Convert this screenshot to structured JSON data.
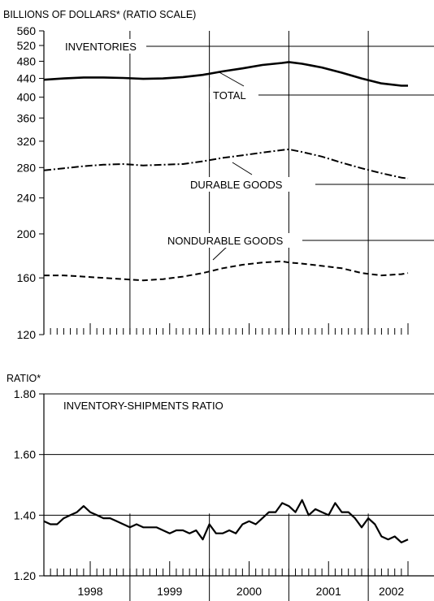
{
  "chart_data": [
    {
      "type": "line",
      "title": "",
      "ylabel": "BILLIONS OF DOLLARS* (RATIO SCALE)",
      "yscale": "log",
      "ylim": [
        120,
        560
      ],
      "yticks": [
        120,
        160,
        200,
        240,
        280,
        320,
        360,
        400,
        440,
        480,
        520,
        560
      ],
      "grid": "vertical lines at year boundaries",
      "x_range": [
        "1997-12",
        "2002-07"
      ],
      "panel_label": "INVENTORIES",
      "series": [
        {
          "name": "TOTAL",
          "style": "solid",
          "x": [
            "1997-12",
            "1998-03",
            "1998-06",
            "1998-09",
            "1998-12",
            "1999-03",
            "1999-06",
            "1999-09",
            "1999-12",
            "2000-03",
            "2000-06",
            "2000-09",
            "2000-12",
            "2001-01",
            "2001-03",
            "2001-06",
            "2001-09",
            "2001-12",
            "2002-03",
            "2002-06",
            "2002-07"
          ],
          "y": [
            437,
            440,
            442,
            442,
            441,
            439,
            440,
            443,
            448,
            456,
            463,
            471,
            476,
            478,
            474,
            465,
            453,
            440,
            429,
            424,
            424
          ]
        },
        {
          "name": "DURABLE GOODS",
          "style": "dash-dot",
          "x": [
            "1997-12",
            "1998-03",
            "1998-06",
            "1998-09",
            "1998-12",
            "1999-03",
            "1999-06",
            "1999-09",
            "1999-12",
            "2000-03",
            "2000-06",
            "2000-09",
            "2000-12",
            "2001-01",
            "2001-03",
            "2001-06",
            "2001-09",
            "2001-12",
            "2002-03",
            "2002-06",
            "2002-07"
          ],
          "y": [
            276,
            279,
            282,
            284,
            285,
            283,
            284,
            285,
            289,
            294,
            298,
            302,
            306,
            307,
            303,
            296,
            287,
            279,
            272,
            266,
            265
          ]
        },
        {
          "name": "NONDURABLE GOODS",
          "style": "dashed",
          "x": [
            "1997-12",
            "1998-03",
            "1998-06",
            "1998-09",
            "1998-12",
            "1999-03",
            "1999-06",
            "1999-09",
            "1999-12",
            "2000-03",
            "2000-06",
            "2000-09",
            "2000-12",
            "2001-01",
            "2001-03",
            "2001-06",
            "2001-09",
            "2001-12",
            "2002-03",
            "2002-06",
            "2002-07"
          ],
          "y": [
            162,
            162,
            161,
            160,
            159,
            158,
            159,
            161,
            164,
            168,
            171,
            173,
            174,
            173,
            172,
            170,
            168,
            164,
            162,
            163,
            164
          ]
        }
      ]
    },
    {
      "type": "line",
      "title": "",
      "ylabel": "RATIO*",
      "ylim": [
        1.2,
        1.8
      ],
      "yticks": [
        1.2,
        1.4,
        1.6,
        1.8
      ],
      "grid": "horizontal and vertical",
      "x_range": [
        "1997-12",
        "2002-07"
      ],
      "categories": [
        "1998",
        "1999",
        "2000",
        "2001",
        "2002"
      ],
      "panel_label": "INVENTORY-SHIPMENTS RATIO",
      "series": [
        {
          "name": "INVENTORY-SHIPMENTS RATIO",
          "style": "solid",
          "x": [
            "1997-12",
            "1998-01",
            "1998-02",
            "1998-03",
            "1998-04",
            "1998-05",
            "1998-06",
            "1998-07",
            "1998-08",
            "1998-09",
            "1998-10",
            "1998-11",
            "1998-12",
            "1999-01",
            "1999-02",
            "1999-03",
            "1999-04",
            "1999-05",
            "1999-06",
            "1999-07",
            "1999-08",
            "1999-09",
            "1999-10",
            "1999-11",
            "1999-12",
            "2000-01",
            "2000-02",
            "2000-03",
            "2000-04",
            "2000-05",
            "2000-06",
            "2000-07",
            "2000-08",
            "2000-09",
            "2000-10",
            "2000-11",
            "2000-12",
            "2001-01",
            "2001-02",
            "2001-03",
            "2001-04",
            "2001-05",
            "2001-06",
            "2001-07",
            "2001-08",
            "2001-09",
            "2001-10",
            "2001-11",
            "2001-12",
            "2002-01",
            "2002-02",
            "2002-03",
            "2002-04",
            "2002-05",
            "2002-06",
            "2002-07"
          ],
          "y": [
            1.38,
            1.37,
            1.37,
            1.39,
            1.4,
            1.41,
            1.43,
            1.41,
            1.4,
            1.39,
            1.39,
            1.38,
            1.37,
            1.36,
            1.37,
            1.36,
            1.36,
            1.36,
            1.35,
            1.34,
            1.35,
            1.35,
            1.34,
            1.35,
            1.32,
            1.37,
            1.34,
            1.34,
            1.35,
            1.34,
            1.37,
            1.38,
            1.37,
            1.39,
            1.41,
            1.41,
            1.44,
            1.43,
            1.41,
            1.45,
            1.4,
            1.42,
            1.41,
            1.4,
            1.44,
            1.41,
            1.41,
            1.39,
            1.36,
            1.39,
            1.37,
            1.33,
            1.32,
            1.33,
            1.31,
            1.32
          ]
        }
      ]
    }
  ]
}
